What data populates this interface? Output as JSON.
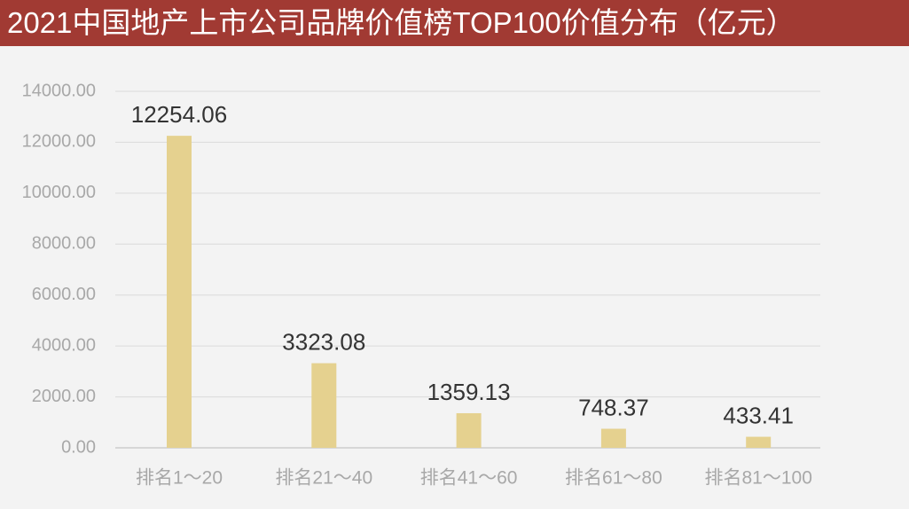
{
  "chart_data": {
    "type": "bar",
    "title": "2021中国地产上市公司品牌价值榜TOP100价值分布（亿元）",
    "categories": [
      "排名1～20",
      "排名21～40",
      "排名41～60",
      "排名61～80",
      "排名81～100"
    ],
    "values": [
      12254.06,
      3323.08,
      1359.13,
      748.37,
      433.41
    ],
    "color": "#e5d18f",
    "ylim": [
      0,
      14000
    ],
    "yticks": [
      {
        "value": 0,
        "label": "0.00"
      },
      {
        "value": 2000,
        "label": "2000.00"
      },
      {
        "value": 4000,
        "label": "4000.00"
      },
      {
        "value": 6000,
        "label": "6000.00"
      },
      {
        "value": 8000,
        "label": "8000.00"
      },
      {
        "value": 10000,
        "label": "10000.00"
      },
      {
        "value": 12000,
        "label": "12000.00"
      },
      {
        "value": 14000,
        "label": "14000.00"
      }
    ],
    "grid": true
  }
}
